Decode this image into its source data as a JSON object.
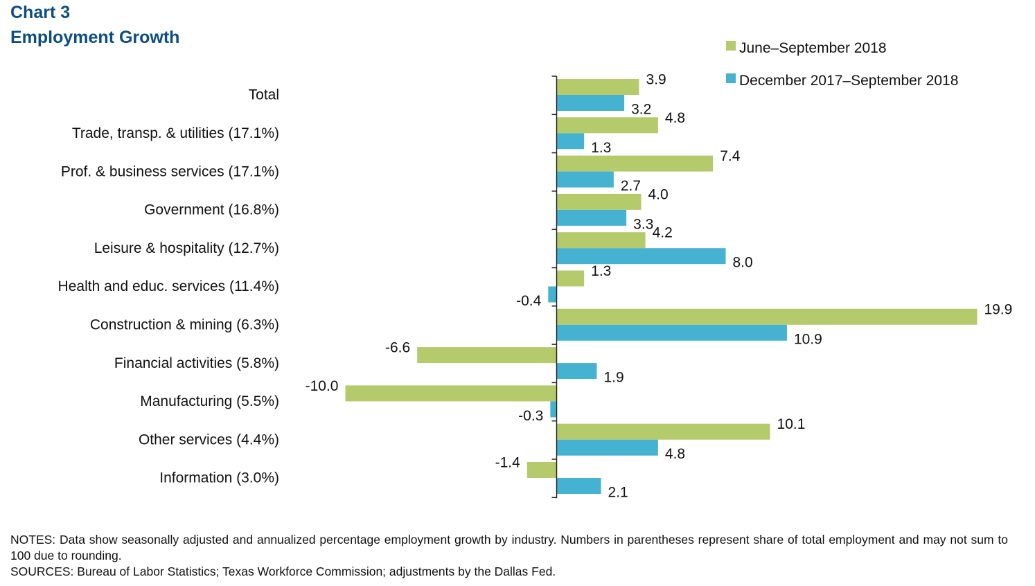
{
  "chart_data": {
    "type": "bar",
    "orientation": "horizontal",
    "title_line1": "Chart 3",
    "title_line2": "Employment Growth",
    "categories": [
      "Total",
      "Trade, transp. & utilities (17.1%)",
      "Prof. & business services (17.1%)",
      "Government (16.8%)",
      "Leisure & hospitality (12.7%)",
      "Health and educ. services (11.4%)",
      "Construction & mining (6.3%)",
      "Financial activities (5.8%)",
      "Manufacturing (5.5%)",
      "Other services (4.4%)",
      "Information (3.0%)"
    ],
    "series": [
      {
        "name": "June–September 2018",
        "color": "#b5ca6b",
        "values": [
          3.9,
          4.8,
          7.4,
          4.0,
          4.2,
          1.3,
          19.9,
          -6.6,
          -10.0,
          10.1,
          -1.4
        ],
        "labels": [
          "3.9",
          "4.8",
          "7.4",
          "4.0",
          "4.2",
          "1.3",
          "19.9",
          "-6.6",
          "-10.0",
          "10.1",
          "-1.4"
        ]
      },
      {
        "name": "December 2017–September 2018",
        "color": "#45b2d1",
        "values": [
          3.2,
          1.3,
          2.7,
          3.3,
          8.0,
          -0.4,
          10.9,
          1.9,
          -0.3,
          4.8,
          2.1
        ],
        "labels": [
          "3.2",
          "1.3",
          "2.7",
          "3.3",
          "8.0",
          "-0.4",
          "10.9",
          "1.9",
          "-0.3",
          "4.8",
          "2.1"
        ]
      }
    ],
    "xlim": [
      -10,
      20
    ],
    "xlabel": "",
    "ylabel": "",
    "grid": false,
    "legend": "top-right"
  },
  "notes": {
    "line1": "NOTES: Data show seasonally adjusted and annualized percentage employment growth by industry. Numbers in parentheses represent share of total employment and may not sum to 100 due to rounding.",
    "line2": "SOURCES: Bureau of Labor Statistics; Texas Workforce Commission; adjustments by the Dallas Fed."
  }
}
